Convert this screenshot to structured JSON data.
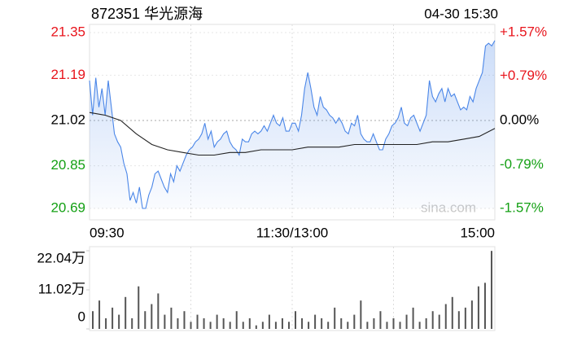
{
  "chart_data": [
    {
      "type": "line",
      "title": "872351 华光源海",
      "subtitle": "04-30 15:30",
      "watermark": "sina.com",
      "up_color": "#e8141c",
      "down_color": "#14a014",
      "flat_color": "#000000",
      "grid": true,
      "x_labels": [
        "09:30",
        "11:30/13:00",
        "15:00"
      ],
      "ylim": [
        20.69,
        21.35
      ],
      "yticks": [
        21.35,
        21.19,
        21.02,
        20.85,
        20.69
      ],
      "y2lim": [
        -1.57,
        1.57
      ],
      "y2ticks": [
        {
          "value": 1.57,
          "label": "+1.57%"
        },
        {
          "value": 0.79,
          "label": "+0.79%"
        },
        {
          "value": 0,
          "label": "0.00%"
        },
        {
          "value": -0.79,
          "label": "-0.79%"
        },
        {
          "value": -1.57,
          "label": "-1.57%"
        }
      ],
      "series": [
        {
          "color": "#4a86e8",
          "values": [
            21.17,
            21.04,
            21.18,
            21.07,
            21.14,
            21.04,
            21.17,
            21.07,
            20.97,
            20.94,
            20.92,
            20.86,
            20.82,
            20.72,
            20.75,
            20.71,
            20.77,
            20.69,
            20.69,
            20.74,
            20.77,
            20.82,
            20.83,
            20.8,
            20.77,
            20.75,
            20.82,
            20.79,
            20.85,
            20.83,
            20.86,
            20.89,
            20.91,
            20.92,
            20.94,
            20.95,
            20.97,
            21.01,
            20.95,
            20.98,
            20.92,
            20.94,
            20.95,
            20.97,
            20.98,
            20.94,
            20.92,
            20.91,
            20.89,
            20.95,
            20.94,
            20.94,
            20.97,
            20.98,
            20.97,
            20.98,
            21.0,
            20.98,
            21.01,
            21.04,
            21.01,
            21.0,
            21.03,
            20.98,
            20.98,
            21.01,
            21.01,
            20.98,
            21.04,
            21.14,
            21.2,
            21.14,
            21.07,
            21.04,
            21.11,
            21.07,
            21.06,
            21.04,
            21.03,
            21.01,
            21.03,
            21.01,
            20.98,
            20.97,
            21.01,
            21.0,
            21.04,
            20.97,
            20.95,
            20.94,
            20.94,
            20.97,
            20.94,
            20.91,
            20.91,
            20.95,
            20.97,
            21.0,
            21.01,
            21.03,
            21.07,
            21.01,
            21.0,
            21.03,
            21.04,
            21.01,
            20.98,
            21.01,
            21.04,
            21.17,
            21.11,
            21.09,
            21.12,
            21.14,
            21.09,
            21.14,
            21.11,
            21.12,
            21.09,
            21.06,
            21.07,
            21.06,
            21.11,
            21.09,
            21.14,
            21.17,
            21.2,
            21.3,
            21.31,
            21.3,
            21.32
          ]
        },
        {
          "color": "#222222",
          "values": [
            21.05,
            21.04,
            21.02,
            20.97,
            20.93,
            20.91,
            20.9,
            20.89,
            20.89,
            20.9,
            20.9,
            20.91,
            20.91,
            20.91,
            20.92,
            20.92,
            20.92,
            20.93,
            20.93,
            20.93,
            20.93,
            20.93,
            20.94,
            20.94,
            20.95,
            20.96,
            20.99
          ]
        }
      ]
    },
    {
      "type": "bar",
      "color": "#555555",
      "ylim": [
        0,
        22.04
      ],
      "yticks": [
        {
          "value": 22.04,
          "label": "22.04万"
        },
        {
          "value": 11.02,
          "label": "11.02万"
        },
        0
      ],
      "values": [
        5,
        8,
        3,
        6,
        4,
        9,
        3,
        12,
        5,
        7,
        10,
        4,
        6,
        3,
        5,
        2,
        4,
        3,
        2,
        4,
        3,
        2,
        5,
        2,
        3,
        1,
        2,
        4,
        2,
        3,
        2,
        5,
        3,
        2,
        4,
        3,
        2,
        6,
        3,
        2,
        4,
        8,
        2,
        3,
        5,
        2,
        3,
        2,
        4,
        6,
        2,
        3,
        5,
        4,
        7,
        9,
        5,
        6,
        8,
        12,
        13,
        22
      ]
    }
  ]
}
